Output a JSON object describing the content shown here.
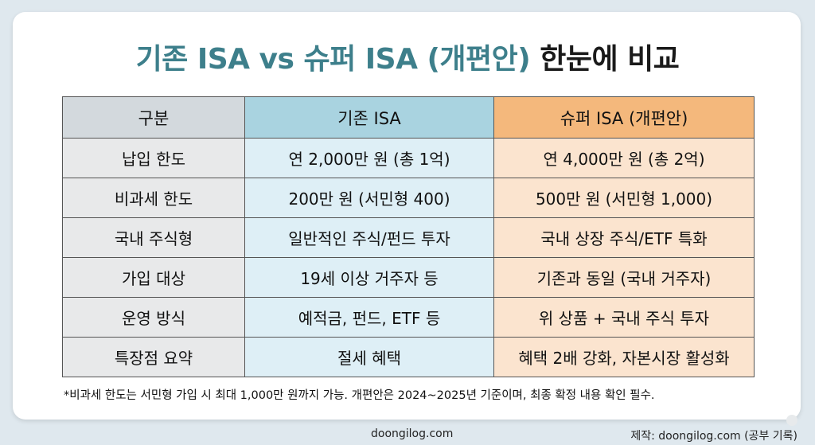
{
  "title": {
    "part_accent": "기존 ISA vs 슈퍼 ISA (개편안)",
    "part_dark": " 한눈에 비교"
  },
  "table": {
    "headers": [
      "구분",
      "기존 ISA",
      "슈퍼 ISA (개편안)"
    ],
    "rows": [
      [
        "납입 한도",
        "연 2,000만 원 (총 1억)",
        "연 4,000만 원 (총 2억)"
      ],
      [
        "비과세 한도",
        "200만 원 (서민형 400)",
        "500만 원 (서민형 1,000)"
      ],
      [
        "국내 주식형",
        "일반적인 주식/펀드 투자",
        "국내 상장 주식/ETF 특화"
      ],
      [
        "가입 대상",
        "19세 이상 거주자 등",
        "기존과 동일 (국내 거주자)"
      ],
      [
        "운영 방식",
        "예적금, 펀드, ETF 등",
        "위 상품 + 국내 주식 투자"
      ],
      [
        "특장점 요약",
        "절세 혜택",
        "혜택 2배 강화, 자본시장 활성화"
      ]
    ]
  },
  "footnote": "*비과세 한도는 서민형 가입 시 최대 1,000만 원까지 가능. 개편안은 2024~2025년 기준이며, 최종 확정 내용 확인 필수.",
  "footer": {
    "site": "doongilog.com",
    "credit": "제작: doongilog.com (공부 기록)"
  },
  "colors": {
    "title_accent": "#3d7f8b",
    "header_gubun": "#d3d9dd",
    "header_old_isa": "#a9d3e0",
    "header_super_isa": "#f4b87c",
    "col_gubun": "#e8e9ea",
    "col_old_isa": "#deeff6",
    "col_super_isa": "#fbe4cf"
  }
}
